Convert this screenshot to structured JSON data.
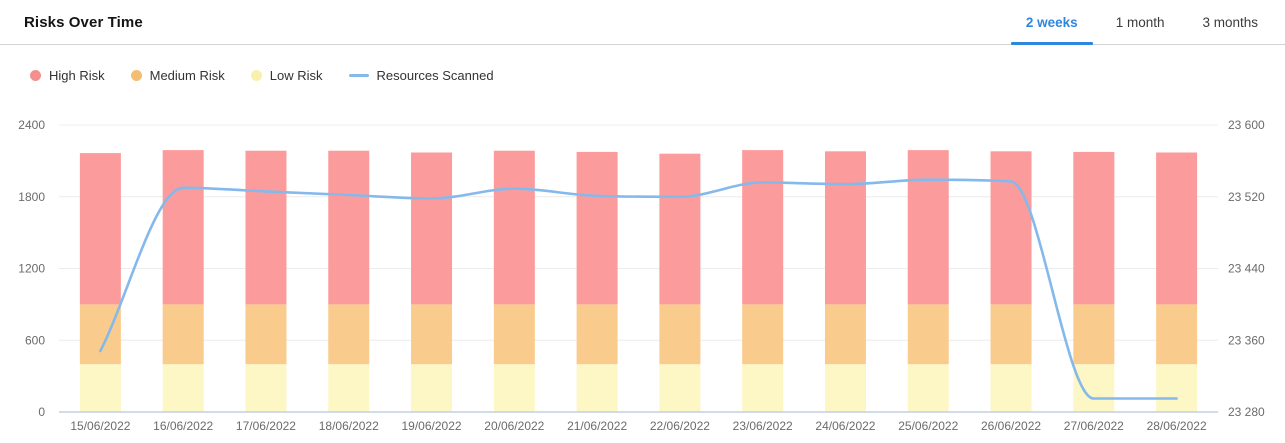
{
  "header": {
    "title": "Risks Over Time",
    "tabs": [
      {
        "label": "2 weeks",
        "active": true
      },
      {
        "label": "1 month",
        "active": false
      },
      {
        "label": "3 months",
        "active": false
      }
    ],
    "accent_color": "#2e86de"
  },
  "legend": [
    {
      "label": "High Risk",
      "swatch": "circle",
      "color": "#f3908f"
    },
    {
      "label": "Medium Risk",
      "swatch": "circle",
      "color": "#f3bd74"
    },
    {
      "label": "Low Risk",
      "swatch": "circle",
      "color": "#f9f0ae"
    },
    {
      "label": "Resources Scanned",
      "swatch": "line",
      "color": "#85b9ec"
    }
  ],
  "chart_data": {
    "type": "bar",
    "stacked": true,
    "grid": true,
    "legend_position": "top-left",
    "categories": [
      "15/06/2022",
      "16/06/2022",
      "17/06/2022",
      "18/06/2022",
      "19/06/2022",
      "20/06/2022",
      "21/06/2022",
      "22/06/2022",
      "23/06/2022",
      "24/06/2022",
      "25/06/2022",
      "26/06/2022",
      "27/06/2022",
      "28/06/2022"
    ],
    "series": [
      {
        "name": "High Risk",
        "type": "bar",
        "axis": "left",
        "color": "#fb9b9b",
        "values": [
          1265,
          1290,
          1285,
          1285,
          1270,
          1285,
          1275,
          1260,
          1290,
          1280,
          1290,
          1280,
          1275,
          1270
        ]
      },
      {
        "name": "Medium Risk",
        "type": "bar",
        "axis": "left",
        "color": "#f9cc8d",
        "values": [
          500,
          500,
          500,
          500,
          500,
          500,
          500,
          500,
          500,
          500,
          500,
          500,
          500,
          500
        ]
      },
      {
        "name": "Low Risk",
        "type": "bar",
        "axis": "left",
        "color": "#fdf6c5",
        "values": [
          400,
          400,
          400,
          400,
          400,
          400,
          400,
          400,
          400,
          400,
          400,
          400,
          400,
          400
        ]
      },
      {
        "name": "Resources Scanned",
        "type": "line",
        "axis": "right",
        "color": "#85b9ec",
        "values": [
          23348,
          23530,
          23526,
          23522,
          23518,
          23529,
          23521,
          23520,
          23536,
          23534,
          23539,
          23537,
          23295,
          23295
        ]
      }
    ],
    "left_axis": {
      "min": 0,
      "max": 2400,
      "tick_values": [
        0,
        600,
        1200,
        1800,
        2400
      ],
      "tick_labels": [
        "0",
        "600",
        "1200",
        "1800",
        "2400"
      ]
    },
    "right_axis": {
      "min": 23280,
      "max": 23600,
      "tick_values": [
        23280,
        23360,
        23440,
        23520,
        23600
      ],
      "tick_labels": [
        "23 280",
        "23 360",
        "23 440",
        "23 520",
        "23 600"
      ]
    },
    "colors": {
      "gridline": "#ececec",
      "baseline": "#c3cfe3",
      "tick_text": "#6b6b6b"
    }
  }
}
